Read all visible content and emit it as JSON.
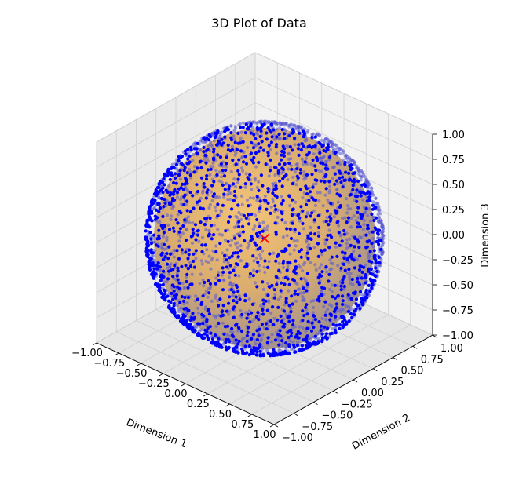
{
  "chart_data": {
    "type": "scatter",
    "projection": "3d",
    "title": "3D Plot of Data",
    "xlabel": "Dimension 1",
    "ylabel": "Dimension 2",
    "zlabel": "Dimension 3",
    "xlim": [
      -1.0,
      1.0
    ],
    "ylim": [
      -1.0,
      1.0
    ],
    "zlim": [
      -1.0,
      1.0
    ],
    "x_ticks": [
      "−1.00",
      "−0.75",
      "−0.50",
      "−0.25",
      "0.00",
      "0.25",
      "0.50",
      "0.75",
      "1.00"
    ],
    "y_ticks": [
      "−1.00",
      "−0.75",
      "−0.50",
      "−0.25",
      "0.00",
      "0.25",
      "0.50",
      "0.75",
      "1.00"
    ],
    "z_ticks": [
      "−1.00",
      "−0.75",
      "−0.50",
      "−0.25",
      "0.00",
      "0.25",
      "0.50",
      "0.75",
      "1.00"
    ],
    "tick_values": [
      -1.0,
      -0.75,
      -0.5,
      -0.25,
      0.0,
      0.25,
      0.5,
      0.75,
      1.0
    ],
    "grid": true,
    "surface": {
      "shape": "sphere",
      "center": [
        0,
        0,
        0
      ],
      "radius": 1.0,
      "color": "#f0b860"
    },
    "points": {
      "distribution": "uniform on unit sphere surface",
      "count": 3000,
      "radius": 1.0,
      "color": "#0000ff"
    },
    "center_marker": {
      "x": 0.0,
      "y": 0.0,
      "z": 0.0,
      "marker": "x",
      "color": "#ff0000"
    }
  }
}
